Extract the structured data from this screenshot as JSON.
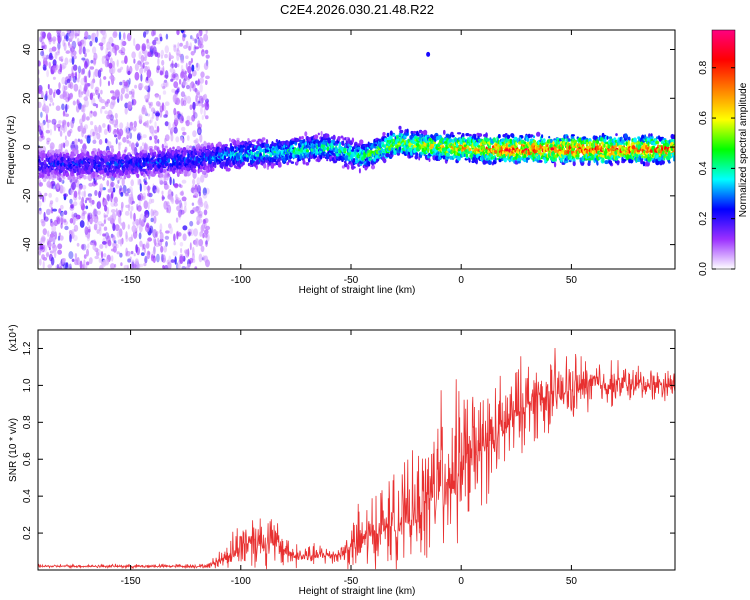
{
  "chart_data": [
    {
      "type": "heatmap",
      "title": "C2E4.2026.030.21.48.R22",
      "xlabel": "Height of straight line (km)",
      "ylabel": "Frequency (Hz)",
      "xlim": [
        -192,
        97
      ],
      "ylim": [
        -50,
        48
      ],
      "xticks": [
        -150,
        -100,
        -50,
        0,
        50
      ],
      "yticks": [
        40,
        20,
        0,
        -20,
        -40
      ],
      "colorbar": {
        "label": "Normalized spectral amplitude",
        "range": [
          0,
          0.95
        ],
        "ticks": [
          0.0,
          0.2,
          0.4,
          0.6,
          0.8
        ],
        "tick_labels": [
          "0.0",
          "0.2",
          "0.4",
          "0.6",
          "0.8"
        ],
        "colors": [
          "#ffffff",
          "#9b30ff",
          "#0000ff",
          "#00ffff",
          "#00ff00",
          "#ffff00",
          "#ff8000",
          "#ff0000",
          "#ff0080"
        ]
      },
      "ridge": [
        {
          "x": -192,
          "y": -7,
          "amp": 0.25
        },
        {
          "x": -150,
          "y": -7,
          "amp": 0.28
        },
        {
          "x": -120,
          "y": -5,
          "amp": 0.3
        },
        {
          "x": -100,
          "y": -3,
          "amp": 0.4
        },
        {
          "x": -80,
          "y": -2,
          "amp": 0.45
        },
        {
          "x": -60,
          "y": 0,
          "amp": 0.45
        },
        {
          "x": -45,
          "y": -4,
          "amp": 0.5
        },
        {
          "x": -28,
          "y": 2,
          "amp": 0.6
        },
        {
          "x": -10,
          "y": 0,
          "amp": 0.65
        },
        {
          "x": 20,
          "y": -1,
          "amp": 0.85
        },
        {
          "x": 60,
          "y": -1,
          "amp": 0.85
        },
        {
          "x": 97,
          "y": -1,
          "amp": 0.8
        }
      ],
      "noise_region": {
        "x_min": -192,
        "x_max": -115,
        "y_min": -50,
        "y_max": 48
      },
      "outlier": {
        "x": -15,
        "y": 38
      }
    },
    {
      "type": "line",
      "xlabel": "Height of straight line (km)",
      "ylabel": "SNR (10 * v/v)",
      "y_multiplier": "(x10⁴)",
      "xlim": [
        -192,
        97
      ],
      "ylim": [
        0,
        1.3
      ],
      "xticks": [
        -150,
        -100,
        -50,
        0,
        50
      ],
      "yticks": [
        0.2,
        0.4,
        0.6,
        0.8,
        1.0,
        1.2
      ],
      "ytick_labels": [
        "0.2",
        "0.4",
        "0.6",
        "0.8",
        "1.0",
        "1.2"
      ],
      "color": "#e83030",
      "series_envelope": [
        {
          "x": -192,
          "base": 0.02,
          "amp": 0.01
        },
        {
          "x": -115,
          "base": 0.02,
          "amp": 0.015
        },
        {
          "x": -108,
          "base": 0.06,
          "amp": 0.08
        },
        {
          "x": -95,
          "base": 0.16,
          "amp": 0.22
        },
        {
          "x": -85,
          "base": 0.14,
          "amp": 0.18
        },
        {
          "x": -75,
          "base": 0.07,
          "amp": 0.08
        },
        {
          "x": -55,
          "base": 0.08,
          "amp": 0.06
        },
        {
          "x": -50,
          "base": 0.12,
          "amp": 0.2
        },
        {
          "x": -35,
          "base": 0.22,
          "amp": 0.3
        },
        {
          "x": -20,
          "base": 0.3,
          "amp": 0.35
        },
        {
          "x": -10,
          "base": 0.45,
          "amp": 0.55
        },
        {
          "x": 0,
          "base": 0.55,
          "amp": 0.5
        },
        {
          "x": 15,
          "base": 0.7,
          "amp": 0.35
        },
        {
          "x": 30,
          "base": 0.9,
          "amp": 0.3
        },
        {
          "x": 45,
          "base": 0.95,
          "amp": 0.25
        },
        {
          "x": 60,
          "base": 1.0,
          "amp": 0.18
        },
        {
          "x": 80,
          "base": 1.0,
          "amp": 0.12
        },
        {
          "x": 97,
          "base": 1.0,
          "amp": 0.1
        }
      ]
    }
  ]
}
